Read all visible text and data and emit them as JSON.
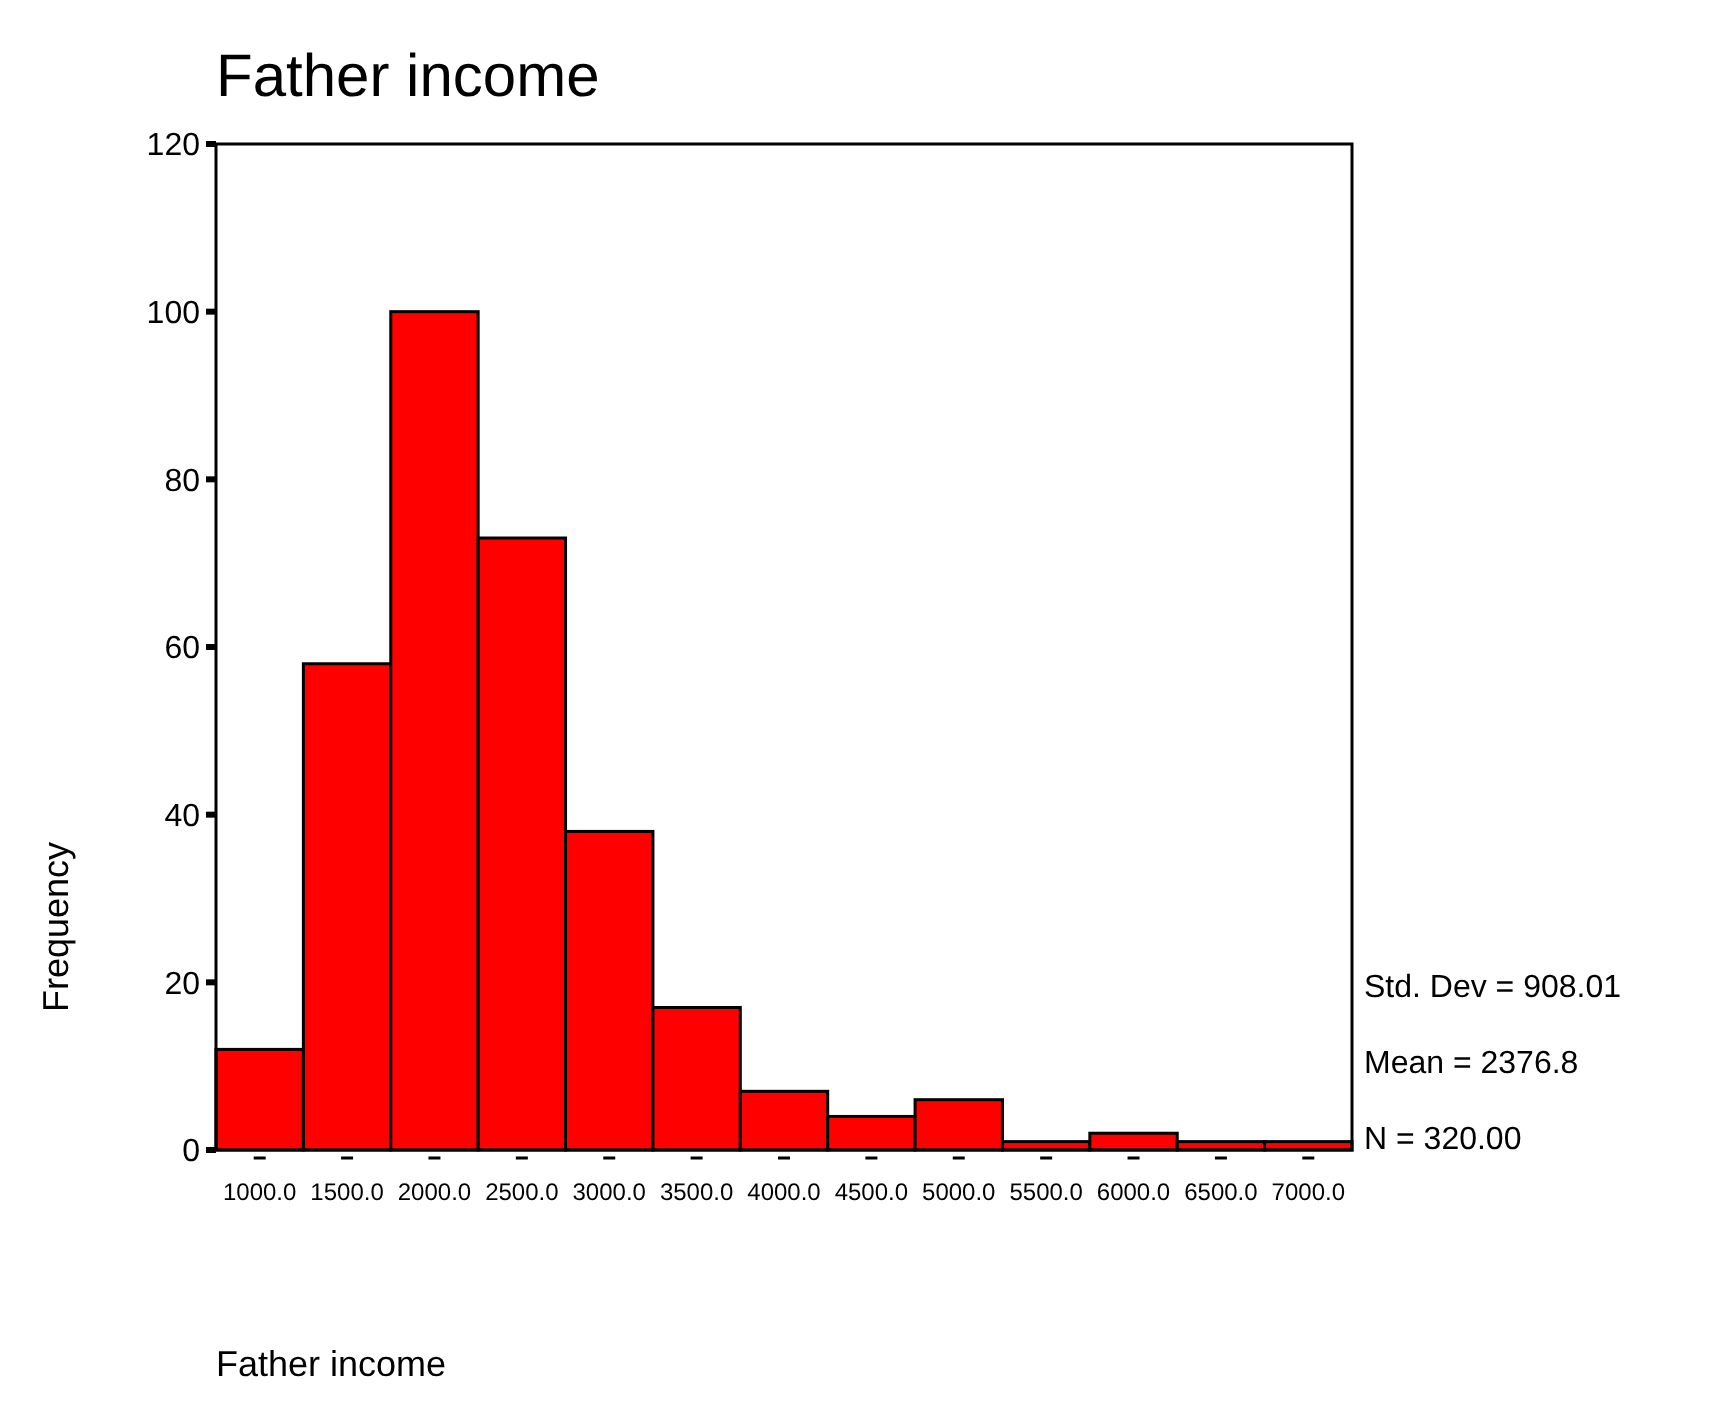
{
  "chart_data": {
    "type": "histogram",
    "title": "Father income",
    "xlabel": "Father income",
    "ylabel": "Frequency",
    "bins": [
      750,
      1250,
      1750,
      2250,
      2750,
      3250,
      3750,
      4250,
      4750,
      5250,
      5750,
      6250,
      6750,
      7250
    ],
    "values": [
      12,
      58,
      100,
      73,
      38,
      17,
      7,
      4,
      6,
      1,
      2,
      1,
      1
    ],
    "color": "#ff0000",
    "xlim": [
      750,
      7250
    ],
    "xticks": [
      {
        "value": 1000,
        "label": "1000.0"
      },
      {
        "value": 1500,
        "label": "1500.0"
      },
      {
        "value": 2000,
        "label": "2000.0"
      },
      {
        "value": 2500,
        "label": "2500.0"
      },
      {
        "value": 3000,
        "label": "3000.0"
      },
      {
        "value": 3500,
        "label": "3500.0"
      },
      {
        "value": 4000,
        "label": "4000.0"
      },
      {
        "value": 4500,
        "label": "4500.0"
      },
      {
        "value": 5000,
        "label": "5000.0"
      },
      {
        "value": 5500,
        "label": "5500.0"
      },
      {
        "value": 6000,
        "label": "6000.0"
      },
      {
        "value": 6500,
        "label": "6500.0"
      },
      {
        "value": 7000,
        "label": "7000.0"
      }
    ],
    "ylim": [
      0,
      120
    ],
    "yticks": [
      0,
      20,
      40,
      60,
      80,
      100,
      120
    ],
    "grid": false,
    "annotations": [
      "Std. Dev = 908.01",
      "Mean = 2376.8",
      "N = 320.00"
    ]
  }
}
